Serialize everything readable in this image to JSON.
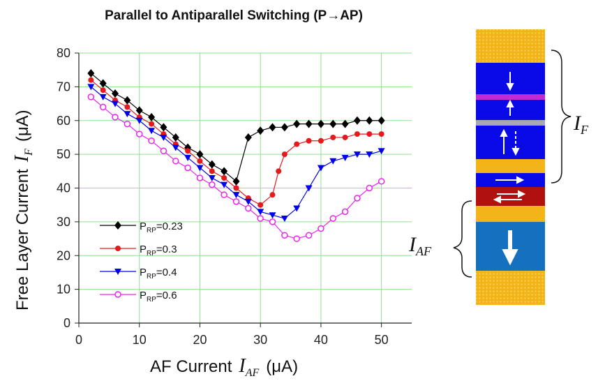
{
  "chart_data": {
    "type": "line",
    "title": "Parallel to Antiparallel Switching (P→AP)",
    "xlabel": [
      "AF Current",
      "I",
      "AF",
      "(μA)"
    ],
    "ylabel": [
      "Free Layer Current",
      "I",
      "F",
      "(μA)"
    ],
    "xlim": [
      0,
      55
    ],
    "xticks": [
      0,
      10,
      20,
      30,
      40,
      50
    ],
    "ylim": [
      0,
      80
    ],
    "yticks": [
      0,
      10,
      20,
      30,
      40,
      50,
      60,
      70,
      80
    ],
    "grid": true,
    "legend": "lower left",
    "series": [
      {
        "name": [
          "P",
          "RP",
          "=0.23"
        ],
        "color": "#000000",
        "marker": "diamond",
        "x": [
          2,
          4,
          6,
          8,
          10,
          12,
          14,
          16,
          18,
          20,
          22,
          24,
          26,
          28,
          30,
          32,
          34,
          36,
          38,
          40,
          42,
          44,
          46,
          48,
          50
        ],
        "values": [
          74,
          71,
          68,
          66,
          63,
          61,
          58,
          55,
          52,
          50,
          47,
          45,
          42,
          55,
          57,
          58,
          58,
          59,
          59,
          59,
          59,
          59,
          60,
          60,
          60
        ]
      },
      {
        "name": [
          "P",
          "RP",
          "=0.3"
        ],
        "color": "#e41a1c",
        "marker": "circle",
        "x": [
          2,
          4,
          6,
          8,
          10,
          12,
          14,
          16,
          18,
          20,
          22,
          24,
          26,
          28,
          30,
          32,
          33,
          34,
          36,
          38,
          40,
          42,
          44,
          46,
          48,
          50
        ],
        "values": [
          72,
          69,
          66,
          64,
          61,
          59,
          56,
          53,
          51,
          48,
          45,
          43,
          40,
          37,
          35,
          38,
          45,
          50,
          53,
          54,
          54,
          55,
          55,
          56,
          56,
          56
        ]
      },
      {
        "name": [
          "P",
          "RP",
          "=0.4"
        ],
        "color": "#0000ee",
        "marker": "triangle-down",
        "x": [
          2,
          4,
          6,
          8,
          10,
          12,
          14,
          16,
          18,
          20,
          22,
          24,
          26,
          28,
          30,
          32,
          34,
          36,
          38,
          40,
          42,
          44,
          46,
          48,
          50
        ],
        "values": [
          70,
          67,
          65,
          62,
          60,
          57,
          55,
          52,
          49,
          46,
          43,
          41,
          38,
          36,
          33,
          32,
          31,
          34,
          40,
          46,
          48,
          49,
          50,
          50,
          51
        ]
      },
      {
        "name": [
          "P",
          "RP",
          "=0.6"
        ],
        "color": "#ee22ee",
        "marker": "open-circle",
        "x": [
          2,
          4,
          6,
          8,
          10,
          12,
          14,
          16,
          18,
          20,
          22,
          24,
          26,
          28,
          30,
          32,
          34,
          36,
          38,
          40,
          42,
          44,
          46,
          48,
          50
        ],
        "values": [
          67,
          64,
          61,
          59,
          56,
          54,
          51,
          48,
          46,
          43,
          41,
          38,
          36,
          34,
          31,
          30,
          26,
          25,
          26,
          28,
          31,
          33,
          37,
          40,
          42
        ]
      }
    ]
  },
  "diagram": {
    "label_f": [
      "I",
      "F"
    ],
    "label_af": [
      "I",
      "AF"
    ]
  }
}
